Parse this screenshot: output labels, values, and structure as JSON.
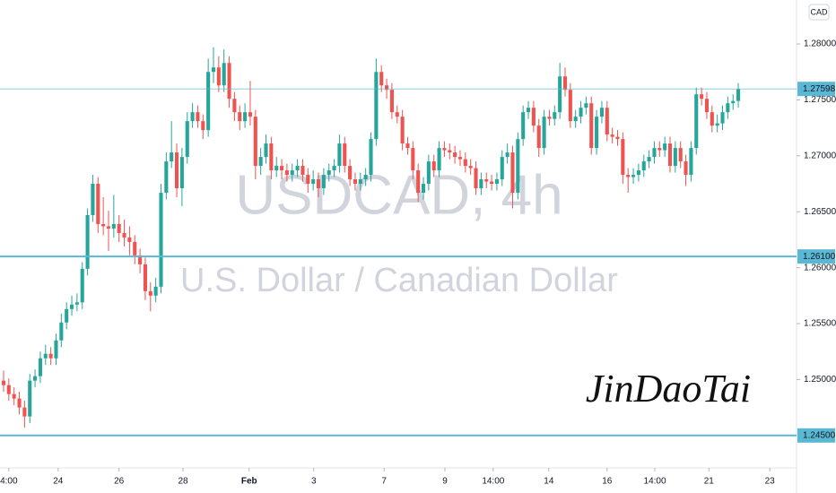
{
  "chart_data": {
    "type": "candlestick",
    "symbol_watermark": "USDCAD, 4h",
    "description_watermark": "U.S. Dollar / Canadian Dollar",
    "signature": "JinDaoTai",
    "currency": "CAD",
    "up_color": "#26a69a",
    "down_color": "#ef5350",
    "level_color": "#5ab8d4",
    "ylim": [
      1.24226,
      1.28393
    ],
    "yticks": [
      {
        "value": 1.28,
        "label": "1.28000"
      },
      {
        "value": 1.275,
        "label": "1.27500"
      },
      {
        "value": 1.27,
        "label": "1.27000"
      },
      {
        "value": 1.265,
        "label": "1.26500"
      },
      {
        "value": 1.26,
        "label": "1.26000"
      },
      {
        "value": 1.255,
        "label": "1.25500"
      },
      {
        "value": 1.25,
        "label": "1.25000"
      }
    ],
    "xlim": [
      -0.68,
      151.1
    ],
    "xticks": [
      {
        "value": 1,
        "label": "4:00"
      },
      {
        "value": 10.4,
        "label": "24"
      },
      {
        "value": 22,
        "label": "26"
      },
      {
        "value": 34.2,
        "label": "28"
      },
      {
        "value": 46.8,
        "label": "Feb"
      },
      {
        "value": 59.1,
        "label": "3"
      },
      {
        "value": 72.5,
        "label": "7"
      },
      {
        "value": 84.1,
        "label": "9"
      },
      {
        "value": 93.3,
        "label": "14:00"
      },
      {
        "value": 103.9,
        "label": "14"
      },
      {
        "value": 115,
        "label": "16"
      },
      {
        "value": 124.1,
        "label": "14:00"
      },
      {
        "value": 134.4,
        "label": "21"
      },
      {
        "value": 146,
        "label": "23"
      }
    ],
    "levels": [
      {
        "value": 1.261,
        "label": "1.26100"
      },
      {
        "value": 1.245,
        "label": "1.24500"
      }
    ],
    "last_price": {
      "value": 1.27598,
      "label": "1.27598"
    },
    "open": [
      1.2499,
      1.2495,
      1.2487,
      1.2483,
      1.2475,
      1.2467,
      1.2499,
      1.2503,
      1.2519,
      1.2523,
      1.2519,
      1.2535,
      1.2551,
      1.2563,
      1.2567,
      1.2569,
      1.2599,
      1.2647,
      1.2675,
      1.2639,
      1.2637,
      1.2635,
      1.2639,
      1.2631,
      1.2627,
      1.2623,
      1.2611,
      1.2603,
      1.2579,
      1.2575,
      1.2583,
      1.2667,
      1.2695,
      1.2703,
      1.2671,
      1.2699,
      1.2731,
      1.2739,
      1.2731,
      1.2723,
      1.2775,
      1.2779,
      1.2763,
      1.2783,
      1.2751,
      1.2739,
      1.2731,
      1.2739,
      1.2735,
      1.2691,
      1.2699,
      1.2711,
      1.2687,
      1.2691,
      1.2687,
      1.2683,
      1.2687,
      1.2691,
      1.2683,
      1.2675,
      1.2679,
      1.2671,
      1.2683,
      1.2687,
      1.2691,
      1.2711,
      1.2691,
      1.2679,
      1.2675,
      1.2679,
      1.2683,
      1.2715,
      1.2775,
      1.2763,
      1.2759,
      1.2739,
      1.2735,
      1.2711,
      1.2707,
      1.2687,
      1.2667,
      1.2675,
      1.2695,
      1.2687,
      1.2707,
      1.2705,
      1.2703,
      1.2699,
      1.2697,
      1.2691,
      1.2689,
      1.2671,
      1.2679,
      1.2677,
      1.2675,
      1.2679,
      1.2699,
      1.2703,
      1.2667,
      1.2715,
      1.2739,
      1.2743,
      1.2727,
      1.2707,
      1.2735,
      1.2733,
      1.2739,
      1.2771,
      1.2759,
      1.2731,
      1.2735,
      1.2743,
      1.2747,
      1.2707,
      1.2735,
      1.2743,
      1.2719,
      1.2717,
      1.2715,
      1.2683,
      1.2681,
      1.2683,
      1.2687,
      1.2695,
      1.2699,
      1.2707,
      1.2705,
      1.2711,
      1.2691,
      1.2707,
      1.2695,
      1.2683,
      1.2707,
      1.2755,
      1.2751,
      1.2739,
      1.2727,
      1.2729,
      1.2739,
      1.2747,
      1.2749
    ],
    "close": [
      1.2495,
      1.2487,
      1.2483,
      1.2475,
      1.2467,
      1.2499,
      1.2503,
      1.2519,
      1.2523,
      1.2519,
      1.2535,
      1.2551,
      1.2563,
      1.2567,
      1.2569,
      1.2599,
      1.2647,
      1.2675,
      1.2639,
      1.2637,
      1.2635,
      1.2639,
      1.2631,
      1.2627,
      1.2623,
      1.2611,
      1.2603,
      1.2579,
      1.2575,
      1.2583,
      1.2667,
      1.2695,
      1.2703,
      1.2671,
      1.2699,
      1.2731,
      1.2739,
      1.2731,
      1.2723,
      1.2775,
      1.2779,
      1.2763,
      1.2783,
      1.2751,
      1.2739,
      1.2731,
      1.2739,
      1.2735,
      1.2691,
      1.2699,
      1.2711,
      1.2687,
      1.2691,
      1.2687,
      1.2683,
      1.2687,
      1.2691,
      1.2683,
      1.2675,
      1.2679,
      1.2671,
      1.2683,
      1.2687,
      1.2691,
      1.2711,
      1.2691,
      1.2679,
      1.2675,
      1.2679,
      1.2683,
      1.2715,
      1.2775,
      1.2763,
      1.2759,
      1.2739,
      1.2735,
      1.2711,
      1.2707,
      1.2687,
      1.2667,
      1.2675,
      1.2695,
      1.2687,
      1.2707,
      1.2705,
      1.2703,
      1.2699,
      1.2697,
      1.2691,
      1.2689,
      1.2671,
      1.2679,
      1.2677,
      1.2675,
      1.2679,
      1.2699,
      1.2703,
      1.2667,
      1.2715,
      1.2739,
      1.2743,
      1.2727,
      1.2707,
      1.2735,
      1.2733,
      1.2739,
      1.2771,
      1.2759,
      1.2731,
      1.2735,
      1.2743,
      1.2747,
      1.2707,
      1.2735,
      1.2743,
      1.2719,
      1.2717,
      1.2715,
      1.2683,
      1.2681,
      1.2683,
      1.2687,
      1.2695,
      1.2699,
      1.2707,
      1.2705,
      1.2711,
      1.2691,
      1.2707,
      1.2695,
      1.2683,
      1.2707,
      1.2755,
      1.2751,
      1.2739,
      1.2727,
      1.2729,
      1.2739,
      1.2747,
      1.2749,
      1.27598
    ],
    "high": [
      1.2508,
      1.2501,
      1.2493,
      1.2489,
      1.2481,
      1.2505,
      1.2509,
      1.2525,
      1.2531,
      1.2529,
      1.2541,
      1.2559,
      1.2569,
      1.2575,
      1.2577,
      1.2605,
      1.2653,
      1.2683,
      1.2681,
      1.2663,
      1.2651,
      1.2665,
      1.2647,
      1.2643,
      1.2637,
      1.2629,
      1.2617,
      1.2609,
      1.2587,
      1.2591,
      1.2675,
      1.2703,
      1.2731,
      1.2711,
      1.2707,
      1.2739,
      1.2747,
      1.2745,
      1.2737,
      1.2787,
      1.2797,
      1.2789,
      1.2795,
      1.2789,
      1.2757,
      1.2745,
      1.2747,
      1.2767,
      1.2741,
      1.2707,
      1.2719,
      1.2717,
      1.2699,
      1.2697,
      1.2693,
      1.2693,
      1.2697,
      1.2697,
      1.2689,
      1.2687,
      1.2685,
      1.2689,
      1.2693,
      1.2697,
      1.2719,
      1.2717,
      1.2697,
      1.2685,
      1.2685,
      1.2689,
      1.2721,
      1.2787,
      1.2781,
      1.2769,
      1.2765,
      1.2745,
      1.2741,
      1.2717,
      1.2713,
      1.2693,
      1.2681,
      1.2701,
      1.2701,
      1.2713,
      1.2713,
      1.2711,
      1.2709,
      1.2705,
      1.2703,
      1.2697,
      1.2695,
      1.2685,
      1.2685,
      1.2683,
      1.2685,
      1.2705,
      1.2711,
      1.2709,
      1.2721,
      1.2745,
      1.2749,
      1.2749,
      1.2733,
      1.2741,
      1.2741,
      1.2745,
      1.2783,
      1.2779,
      1.2765,
      1.2741,
      1.2749,
      1.2753,
      1.2753,
      1.2741,
      1.2749,
      1.2749,
      1.2725,
      1.2723,
      1.2721,
      1.2689,
      1.2689,
      1.2693,
      1.2701,
      1.2705,
      1.2713,
      1.2713,
      1.2717,
      1.2717,
      1.2713,
      1.2713,
      1.2701,
      1.2713,
      1.2761,
      1.2761,
      1.2757,
      1.2745,
      1.2737,
      1.2745,
      1.2753,
      1.2755,
      1.2765
    ],
    "low": [
      1.2489,
      1.2481,
      1.2477,
      1.2469,
      1.2457,
      1.2461,
      1.2493,
      1.2497,
      1.2513,
      1.2513,
      1.2513,
      1.2529,
      1.2545,
      1.2557,
      1.2561,
      1.2563,
      1.2593,
      1.2641,
      1.2631,
      1.2629,
      1.2615,
      1.2627,
      1.2623,
      1.2619,
      1.2611,
      1.2603,
      1.2595,
      1.2571,
      1.2561,
      1.2569,
      1.2577,
      1.2661,
      1.2689,
      1.2663,
      1.2655,
      1.2693,
      1.2725,
      1.2725,
      1.2715,
      1.2717,
      1.2765,
      1.2757,
      1.2757,
      1.2743,
      1.2731,
      1.2723,
      1.2725,
      1.2727,
      1.2679,
      1.2683,
      1.2693,
      1.2679,
      1.2681,
      1.2679,
      1.2677,
      1.2677,
      1.2681,
      1.2677,
      1.2667,
      1.2669,
      1.2663,
      1.2665,
      1.2677,
      1.2681,
      1.2685,
      1.2685,
      1.2673,
      1.2669,
      1.2669,
      1.2673,
      1.2677,
      1.2709,
      1.2757,
      1.2751,
      1.2733,
      1.2729,
      1.2705,
      1.2701,
      1.2679,
      1.2659,
      1.2661,
      1.2669,
      1.2681,
      1.2681,
      1.2699,
      1.2697,
      1.2693,
      1.2691,
      1.2685,
      1.2683,
      1.2665,
      1.2665,
      1.2671,
      1.2669,
      1.2669,
      1.2673,
      1.2693,
      1.2653,
      1.2661,
      1.2709,
      1.2733,
      1.2721,
      1.2699,
      1.2701,
      1.2727,
      1.2727,
      1.2733,
      1.2753,
      1.2725,
      1.2725,
      1.2729,
      1.2737,
      1.2701,
      1.2701,
      1.2729,
      1.2713,
      1.2711,
      1.2709,
      1.2675,
      1.2667,
      1.2675,
      1.2677,
      1.2681,
      1.2689,
      1.2693,
      1.2699,
      1.2699,
      1.2685,
      1.2685,
      1.2689,
      1.2673,
      1.2677,
      1.2701,
      1.2745,
      1.2733,
      1.2721,
      1.2721,
      1.2723,
      1.2733,
      1.2741,
      1.2743
    ]
  }
}
